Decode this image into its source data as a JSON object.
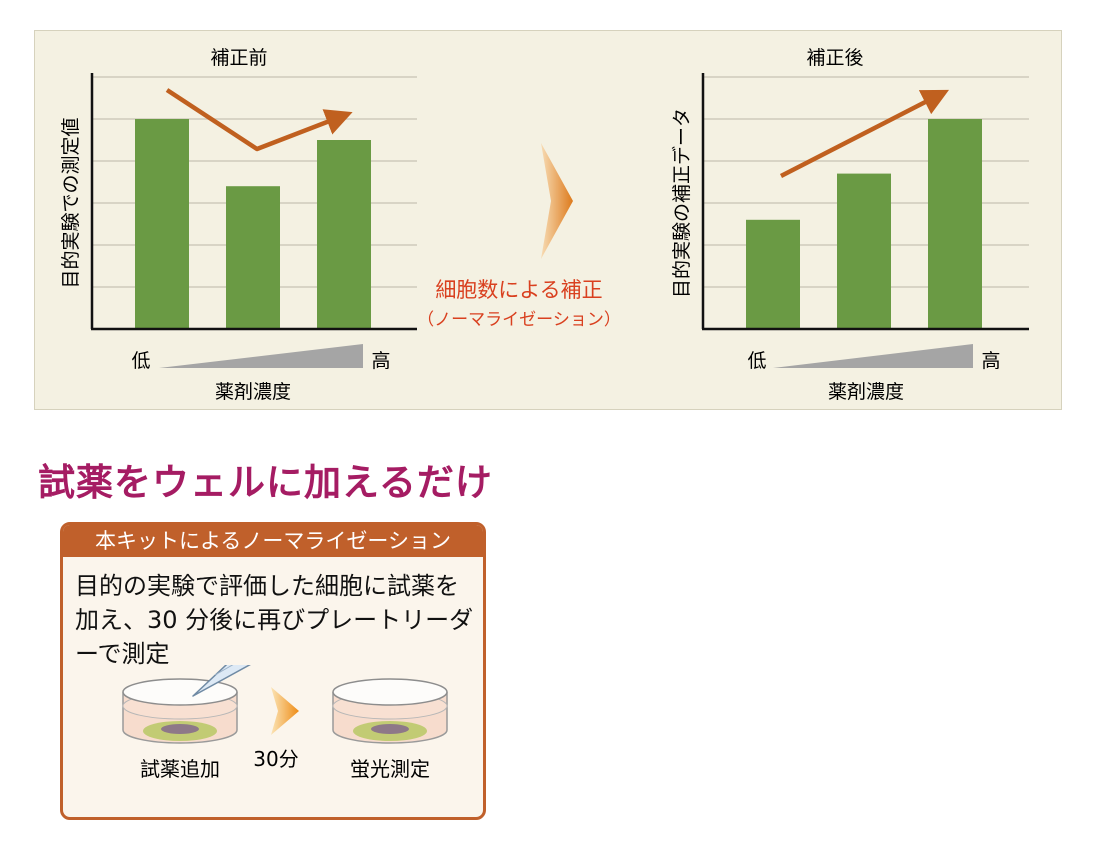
{
  "before_chart": {
    "title": "補正前",
    "ylabel": "目的実験での測定値",
    "low_label": "低",
    "high_label": "高",
    "xlabel": "薬剤濃度"
  },
  "after_chart": {
    "title": "補正後",
    "ylabel": "目的実験の補正データ",
    "low_label": "低",
    "high_label": "高",
    "xlabel": "薬剤濃度"
  },
  "correction": {
    "label": "細胞数による補正",
    "sublabel": "（ノーマライゼーション）"
  },
  "chart_data": [
    {
      "type": "bar",
      "title": "補正前",
      "ylabel": "目的実験での測定値",
      "xlabel": "薬剤濃度",
      "categories": [
        "",
        "",
        ""
      ],
      "values": [
        5,
        3.4,
        4.5
      ],
      "ylim": [
        0,
        6
      ],
      "grid": true,
      "trend_arrow": "down-then-up"
    },
    {
      "type": "bar",
      "title": "補正後",
      "ylabel": "目的実験の補正データ",
      "xlabel": "薬剤濃度",
      "categories": [
        "",
        "",
        ""
      ],
      "values": [
        2.6,
        3.7,
        5
      ],
      "ylim": [
        0,
        6
      ],
      "grid": true,
      "trend_arrow": "rising"
    }
  ],
  "headline": "試薬をウェルに加えるだけ",
  "kit_box": {
    "title": "本キットによるノーマライゼーション",
    "description": "目的の実験で評価した細胞に試薬を加え、30 分後に再びプレートリーダーで測定",
    "step1_label": "試薬追加",
    "interval_label": "30分",
    "step2_label": "蛍光測定"
  },
  "colors": {
    "panel_bg": "#f4f1e2",
    "bar": "#6a9a44",
    "trend_arrow": "#c0601f",
    "correction_text": "#d9401f",
    "headline": "#a51c63",
    "box_accent": "#c0602b"
  }
}
